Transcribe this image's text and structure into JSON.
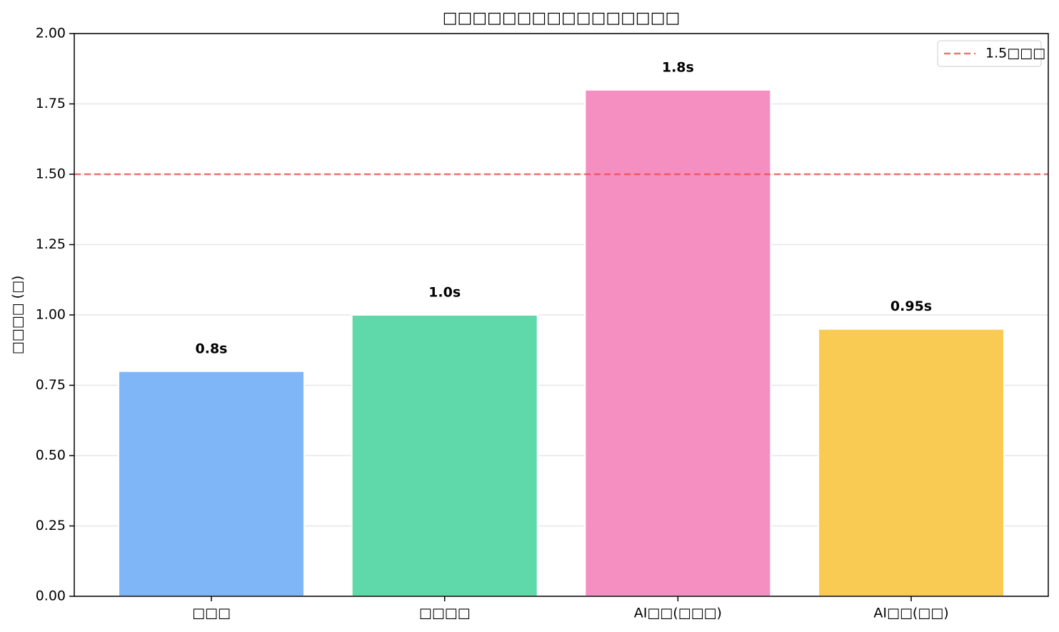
{
  "chart_data": {
    "type": "bar",
    "title": "□□□□□□□□□□□□□□□□",
    "y_label": "□□□□ (□)",
    "categories": [
      "□□□",
      "□□□□",
      "AI□□(□□□)",
      "AI□□(□□)"
    ],
    "values": [
      0.8,
      1.0,
      1.8,
      0.95
    ],
    "value_labels": [
      "0.8s",
      "1.0s",
      "1.8s",
      "0.95s"
    ],
    "colors": [
      "#7fb6f8",
      "#5fd9aa",
      "#f58fc2",
      "#f9cb53"
    ],
    "ylim": [
      0,
      2
    ],
    "yticks": [
      {
        "value": 0,
        "label": "0.00"
      },
      {
        "value": 0.25,
        "label": "0.25"
      },
      {
        "value": 0.5,
        "label": "0.50"
      },
      {
        "value": 0.75,
        "label": "0.75"
      },
      {
        "value": 1,
        "label": "1.00"
      },
      {
        "value": 1.25,
        "label": "1.25"
      },
      {
        "value": 1.5,
        "label": "1.50"
      },
      {
        "value": 1.75,
        "label": "1.75"
      },
      {
        "value": 2,
        "label": "2.00"
      }
    ],
    "grid": true,
    "threshold": {
      "value": 1.5,
      "label": "1.5□□□",
      "color": "#ef4444"
    },
    "legend": "upper right"
  }
}
